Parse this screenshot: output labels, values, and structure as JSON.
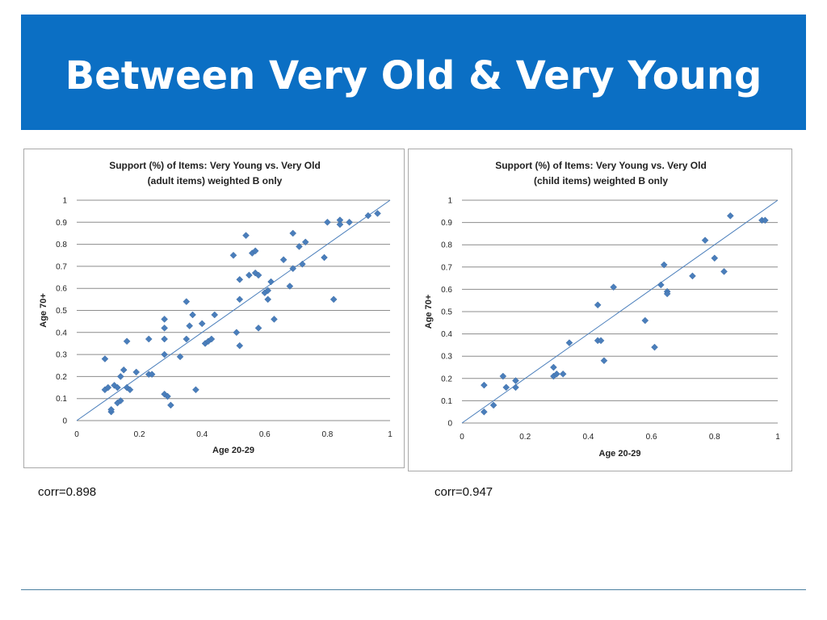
{
  "slide": {
    "title": "Between Very Old & Very Young",
    "colors": {
      "banner": "#0b6fc4",
      "title_text": "#ffffff",
      "point": "#4a7ebb",
      "fit_line": "#4a7ebb",
      "grid": "#8c8c8c"
    }
  },
  "corr_left": "corr=0.898",
  "corr_right": "corr=0.947",
  "chart_data": [
    {
      "type": "scatter",
      "title": "Support (%) of Items: Very Young vs. Very Old",
      "subtitle": "(adult items) weighted B only",
      "xlabel": "Age 20-29",
      "ylabel": "Age 70+",
      "xlim": [
        0,
        1
      ],
      "ylim": [
        0,
        1
      ],
      "x_ticks": [
        "0",
        "0.2",
        "0.4",
        "0.6",
        "0.8",
        "1"
      ],
      "y_ticks": [
        "0",
        "0.1",
        "0.2",
        "0.3",
        "0.4",
        "0.5",
        "0.6",
        "0.7",
        "0.8",
        "0.9",
        "1"
      ],
      "grid": "horizontal",
      "reference_line": [
        [
          0,
          0
        ],
        [
          1,
          1
        ]
      ],
      "x": [
        0.09,
        0.09,
        0.1,
        0.11,
        0.11,
        0.12,
        0.13,
        0.13,
        0.14,
        0.14,
        0.15,
        0.16,
        0.16,
        0.17,
        0.19,
        0.23,
        0.23,
        0.24,
        0.28,
        0.28,
        0.28,
        0.28,
        0.28,
        0.29,
        0.3,
        0.33,
        0.35,
        0.35,
        0.36,
        0.37,
        0.38,
        0.4,
        0.41,
        0.42,
        0.43,
        0.44,
        0.5,
        0.51,
        0.52,
        0.52,
        0.52,
        0.54,
        0.55,
        0.56,
        0.57,
        0.57,
        0.58,
        0.58,
        0.6,
        0.61,
        0.61,
        0.62,
        0.63,
        0.66,
        0.68,
        0.69,
        0.69,
        0.71,
        0.72,
        0.73,
        0.79,
        0.8,
        0.82,
        0.84,
        0.84,
        0.87,
        0.93,
        0.96
      ],
      "y": [
        0.28,
        0.14,
        0.15,
        0.04,
        0.05,
        0.16,
        0.15,
        0.08,
        0.09,
        0.2,
        0.23,
        0.15,
        0.36,
        0.14,
        0.22,
        0.37,
        0.21,
        0.21,
        0.46,
        0.37,
        0.3,
        0.42,
        0.12,
        0.11,
        0.07,
        0.29,
        0.54,
        0.37,
        0.43,
        0.48,
        0.14,
        0.44,
        0.35,
        0.36,
        0.37,
        0.48,
        0.75,
        0.4,
        0.34,
        0.55,
        0.64,
        0.84,
        0.66,
        0.76,
        0.67,
        0.77,
        0.66,
        0.42,
        0.58,
        0.59,
        0.55,
        0.63,
        0.46,
        0.73,
        0.61,
        0.85,
        0.69,
        0.79,
        0.71,
        0.81,
        0.74,
        0.9,
        0.55,
        0.91,
        0.89,
        0.9,
        0.93,
        0.94
      ]
    },
    {
      "type": "scatter",
      "title": "Support (%) of Items: Very Young vs. Very Old",
      "subtitle": "(child items) weighted B only",
      "xlabel": "Age 20-29",
      "ylabel": "Age 70+",
      "xlim": [
        0,
        1
      ],
      "ylim": [
        0,
        1
      ],
      "x_ticks": [
        "0",
        "0.2",
        "0.4",
        "0.6",
        "0.8",
        "1"
      ],
      "y_ticks": [
        "0",
        "0.1",
        "0.2",
        "0.3",
        "0.4",
        "0.5",
        "0.6",
        "0.7",
        "0.8",
        "0.9",
        "1"
      ],
      "grid": "horizontal",
      "reference_line": [
        [
          0,
          0
        ],
        [
          1,
          1
        ]
      ],
      "x": [
        0.07,
        0.07,
        0.1,
        0.13,
        0.14,
        0.17,
        0.17,
        0.29,
        0.29,
        0.3,
        0.32,
        0.34,
        0.43,
        0.43,
        0.44,
        0.45,
        0.48,
        0.58,
        0.61,
        0.63,
        0.64,
        0.65,
        0.65,
        0.73,
        0.77,
        0.8,
        0.83,
        0.85,
        0.95,
        0.96
      ],
      "y": [
        0.05,
        0.17,
        0.08,
        0.21,
        0.16,
        0.19,
        0.16,
        0.25,
        0.21,
        0.22,
        0.22,
        0.36,
        0.53,
        0.37,
        0.37,
        0.28,
        0.61,
        0.46,
        0.34,
        0.62,
        0.71,
        0.59,
        0.58,
        0.66,
        0.82,
        0.74,
        0.68,
        0.93,
        0.91,
        0.91
      ]
    }
  ]
}
